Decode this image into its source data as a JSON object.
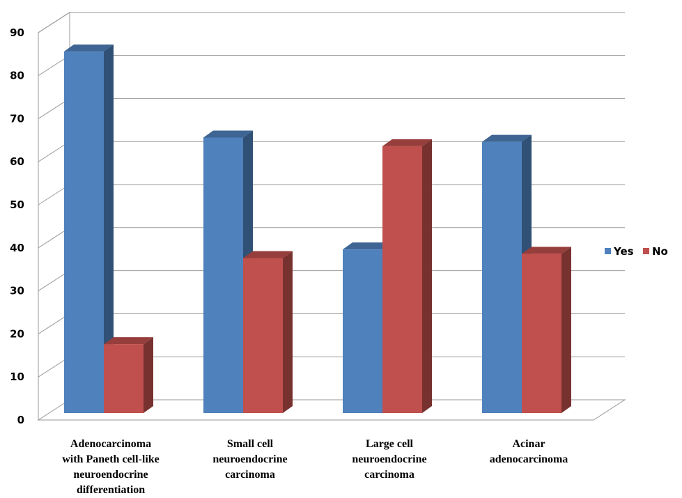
{
  "chart_data": {
    "type": "bar",
    "title": "",
    "xlabel": "",
    "ylabel": "",
    "ylim": [
      0,
      90
    ],
    "yticks": [
      0,
      10,
      20,
      30,
      40,
      50,
      60,
      70,
      80,
      90
    ],
    "grid": true,
    "three_d": true,
    "legend_position": "right",
    "categories": [
      [
        "Adenocarcinoma",
        "with Paneth cell-like",
        "neuroendocrine",
        "differentiation"
      ],
      [
        "Small cell",
        "neuroendocrine",
        "carcinoma"
      ],
      [
        "Large cell",
        "neuroendocrine",
        "carcinoma"
      ],
      [
        "Acinar",
        "adenocarcinoma"
      ]
    ],
    "series": [
      {
        "name": "Yes",
        "color": "#4F81BD",
        "values": [
          84,
          64,
          38,
          63
        ]
      },
      {
        "name": "No",
        "color": "#C0504D",
        "values": [
          16,
          36,
          62,
          37
        ]
      }
    ]
  }
}
